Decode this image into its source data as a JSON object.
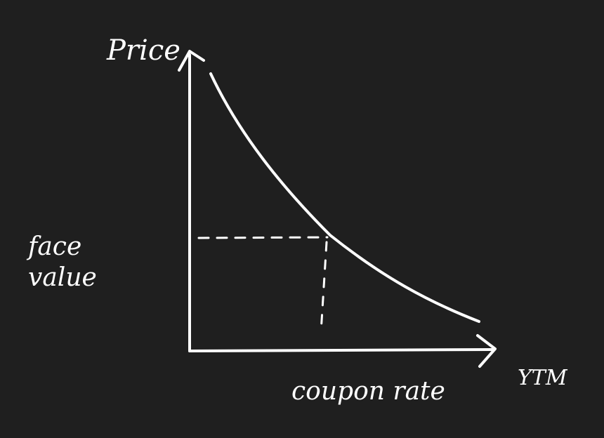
{
  "labels": {
    "y_axis": "Price",
    "x_axis": "YTM",
    "horizontal_guide": "face value",
    "vertical_guide": "coupon rate"
  },
  "colors": {
    "background": "#1f1f1f",
    "ink": "#ffffff"
  }
}
